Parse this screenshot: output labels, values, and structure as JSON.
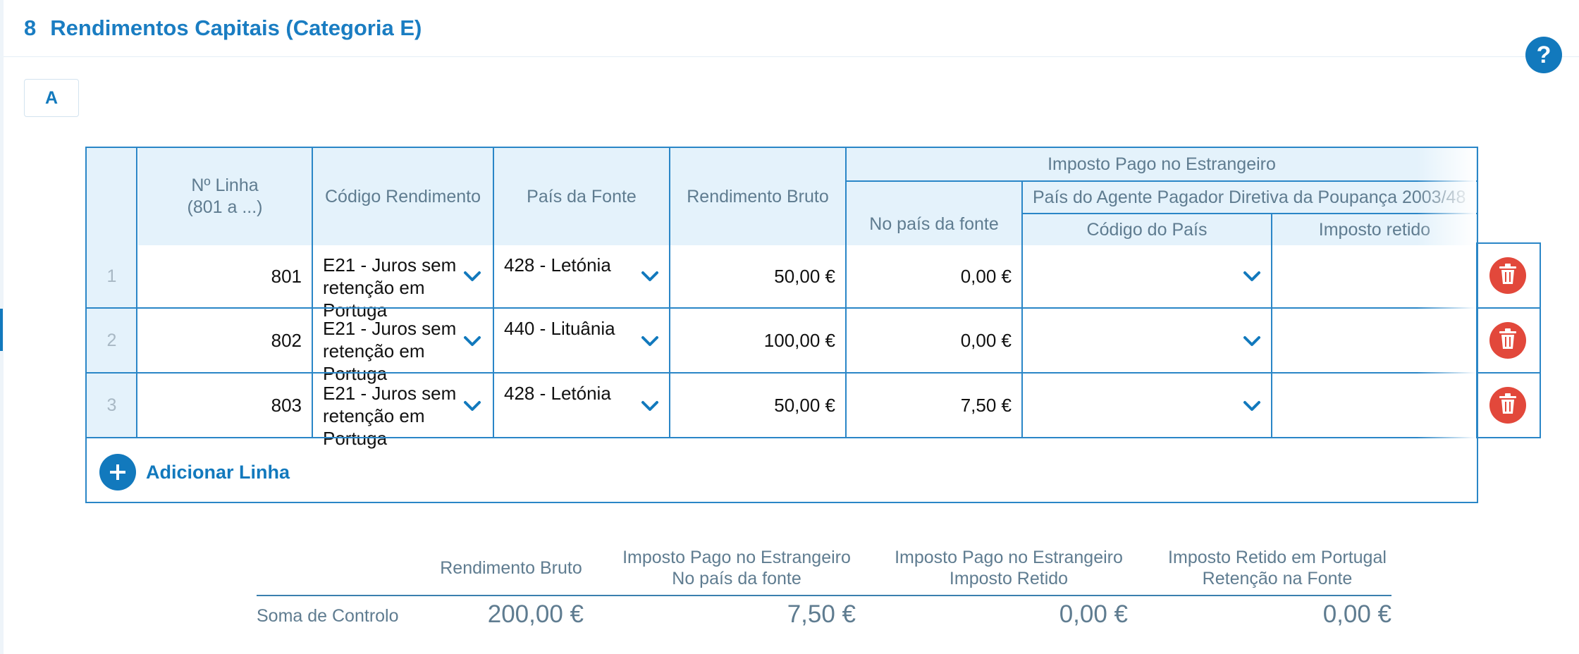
{
  "section": {
    "number": "8",
    "title": "Rendimentos Capitais (Categoria E)"
  },
  "help_label": "?",
  "tabs": [
    {
      "label": "A"
    }
  ],
  "table": {
    "headers": {
      "line_no": "Nº Linha\n(801 a ...)",
      "income_code": "Código Rendimento",
      "source_country": "País da Fonte",
      "gross_income": "Rendimento Bruto",
      "foreign_tax_group": "Imposto Pago no Estrangeiro",
      "source_country_tax": "No país da fonte",
      "agent_country_group": "País do Agente Pagador Diretiva da Poupança 2003/48",
      "country_code": "Código do País",
      "withheld_tax": "Imposto retido"
    },
    "rows": [
      {
        "index": "1",
        "line": "801",
        "code": "E21 - Juros sem retenção em Portuga",
        "country": "428 - Letónia",
        "gross": "50,00 €",
        "source_tax": "0,00 €",
        "agent_country": "",
        "withheld": ""
      },
      {
        "index": "2",
        "line": "802",
        "code": "E21 - Juros sem retenção em Portuga",
        "country": "440 - Lituânia",
        "gross": "100,00 €",
        "source_tax": "0,00 €",
        "agent_country": "",
        "withheld": ""
      },
      {
        "index": "3",
        "line": "803",
        "code": "E21 - Juros sem retenção em Portuga",
        "country": "428 - Letónia",
        "gross": "50,00 €",
        "source_tax": "7,50 €",
        "agent_country": "",
        "withheld": ""
      }
    ],
    "add_row_label": "Adicionar Linha"
  },
  "summary": {
    "row_label": "Soma de Controlo",
    "columns": [
      {
        "line1": "Rendimento Bruto",
        "line2": "",
        "value": "200,00 €"
      },
      {
        "line1": "Imposto Pago no Estrangeiro",
        "line2": "No país da fonte",
        "value": "7,50 €"
      },
      {
        "line1": "Imposto Pago no Estrangeiro",
        "line2": "Imposto Retido",
        "value": "0,00 €"
      },
      {
        "line1": "Imposto Retido em Portugal",
        "line2": "Retenção na Fonte",
        "value": "0,00 €"
      }
    ]
  },
  "colors": {
    "accent": "#1279bd",
    "header_bg": "#e4f2fb",
    "delete": "#e2483b",
    "muted_text": "#5f7c90"
  },
  "icons": {
    "help": "question-icon",
    "delete": "trash-icon",
    "add": "plus-icon",
    "dropdown": "chevron-down-icon"
  }
}
